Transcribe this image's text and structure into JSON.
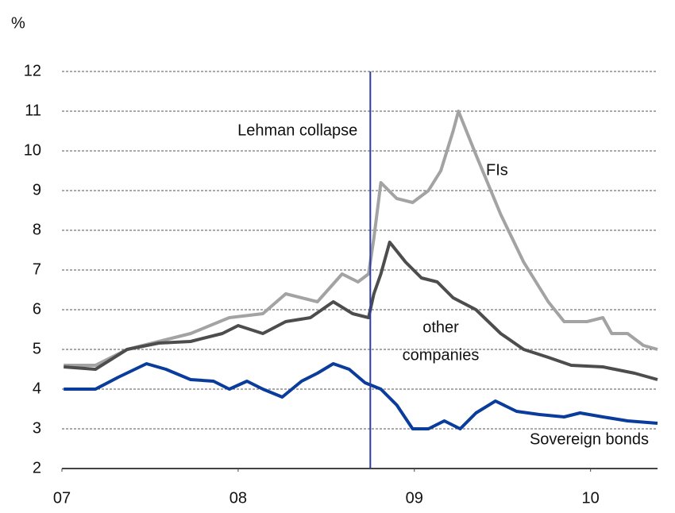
{
  "chart_data": {
    "type": "line",
    "y_unit": "%",
    "xlim": [
      2007,
      2010.38
    ],
    "ylim": [
      2,
      12
    ],
    "xticks": [
      {
        "value": 2007,
        "label": "07"
      },
      {
        "value": 2008,
        "label": "08"
      },
      {
        "value": 2009,
        "label": "09"
      },
      {
        "value": 2010,
        "label": "10"
      }
    ],
    "yticks": [
      2,
      3,
      4,
      5,
      6,
      7,
      8,
      9,
      10,
      11,
      12
    ],
    "grid": true,
    "event": {
      "label": "Lehman collapse",
      "x": 2008.75,
      "color": "#2b3d9e"
    },
    "series": [
      {
        "name": "FIs",
        "color": "#a3a3a3",
        "x": [
          2007.01,
          2007.19,
          2007.37,
          2007.55,
          2007.73,
          2007.95,
          2008.14,
          2008.27,
          2008.45,
          2008.59,
          2008.68,
          2008.74,
          2008.77,
          2008.81,
          2008.9,
          2008.99,
          2009.08,
          2009.15,
          2009.22,
          2009.25,
          2009.35,
          2009.49,
          2009.62,
          2009.76,
          2009.85,
          2009.98,
          2010.07,
          2010.12,
          2010.21,
          2010.3,
          2010.38
        ],
        "values": [
          4.6,
          4.6,
          5.0,
          5.2,
          5.4,
          5.8,
          5.9,
          6.4,
          6.2,
          6.9,
          6.7,
          6.9,
          7.8,
          9.2,
          8.8,
          8.7,
          9.0,
          9.5,
          10.5,
          11.0,
          9.9,
          8.4,
          7.2,
          6.2,
          5.7,
          5.7,
          5.8,
          5.4,
          5.4,
          5.1,
          5.0
        ]
      },
      {
        "name": "other companies",
        "color": "#4d4d4d",
        "x": [
          2007.01,
          2007.19,
          2007.37,
          2007.55,
          2007.73,
          2007.91,
          2008.0,
          2008.14,
          2008.27,
          2008.41,
          2008.54,
          2008.65,
          2008.74,
          2008.77,
          2008.81,
          2008.86,
          2008.95,
          2009.04,
          2009.13,
          2009.22,
          2009.35,
          2009.49,
          2009.62,
          2009.76,
          2009.89,
          2010.07,
          2010.25,
          2010.38
        ],
        "values": [
          4.56,
          4.5,
          5.0,
          5.16,
          5.2,
          5.4,
          5.6,
          5.4,
          5.7,
          5.8,
          6.2,
          5.9,
          5.8,
          6.4,
          6.9,
          7.7,
          7.2,
          6.8,
          6.7,
          6.3,
          6.0,
          5.4,
          5.0,
          4.8,
          4.6,
          4.56,
          4.4,
          4.24
        ]
      },
      {
        "name": "Sovereign bonds",
        "color": "#0a3c9c",
        "x": [
          2007.01,
          2007.19,
          2007.32,
          2007.48,
          2007.59,
          2007.73,
          2007.86,
          2007.95,
          2008.05,
          2008.14,
          2008.25,
          2008.36,
          2008.45,
          2008.54,
          2008.63,
          2008.72,
          2008.81,
          2008.9,
          2008.99,
          2009.08,
          2009.17,
          2009.26,
          2009.35,
          2009.46,
          2009.58,
          2009.71,
          2009.85,
          2009.94,
          2010.07,
          2010.21,
          2010.38
        ],
        "values": [
          4.0,
          4.0,
          4.3,
          4.64,
          4.5,
          4.24,
          4.2,
          4.0,
          4.2,
          4.0,
          3.8,
          4.2,
          4.4,
          4.64,
          4.5,
          4.16,
          4.0,
          3.6,
          3.0,
          3.0,
          3.2,
          3.0,
          3.4,
          3.7,
          3.44,
          3.36,
          3.3,
          3.4,
          3.3,
          3.2,
          3.14
        ]
      }
    ],
    "annotations": [
      {
        "series": 0,
        "lines": [
          "FIs"
        ]
      },
      {
        "series": 1,
        "lines": [
          "other",
          "companies"
        ]
      },
      {
        "series": 2,
        "lines": [
          "Sovereign bonds"
        ]
      }
    ]
  }
}
